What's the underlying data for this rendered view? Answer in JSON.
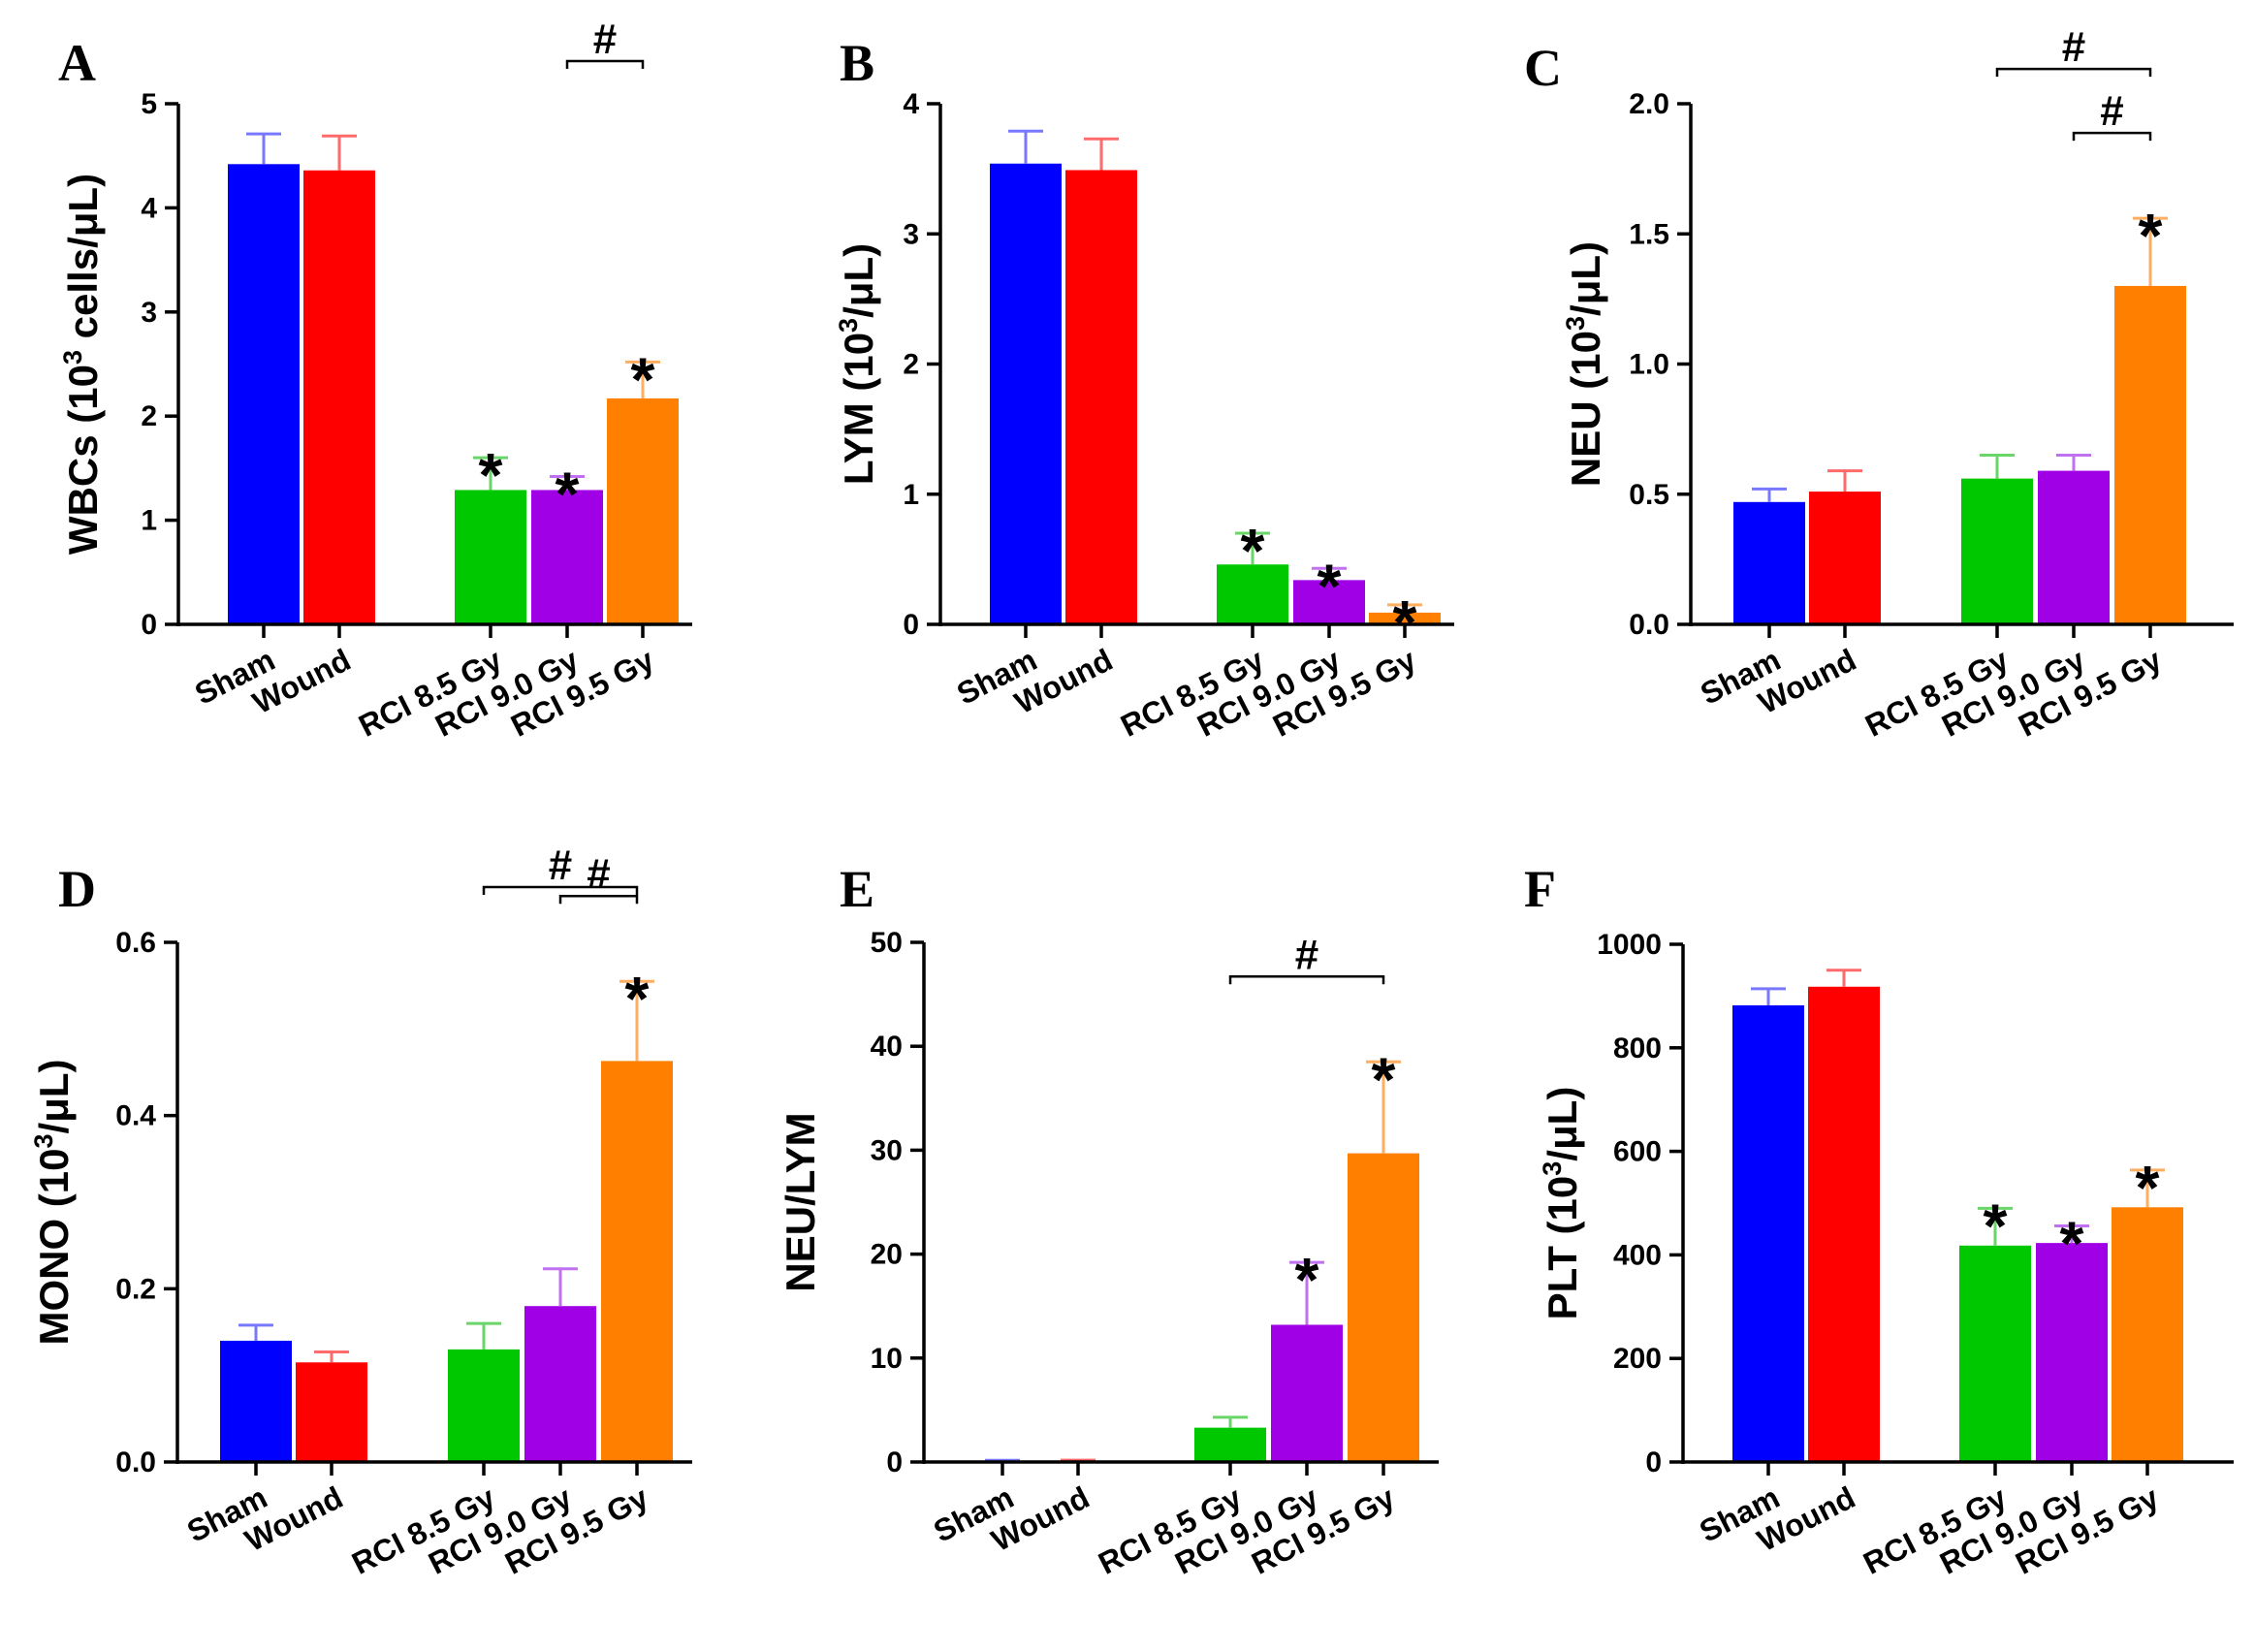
{
  "chart_data": [
    {
      "type": "bar",
      "panel": "A",
      "ylabel_pre": "WBCs (10",
      "ylabel_sup": "3",
      "ylabel_post": " cells/μL)",
      "yticks": [
        "0",
        "1",
        "2",
        "3",
        "4",
        "5"
      ],
      "ylim": [
        0,
        5
      ],
      "categories": [
        "Sham",
        "Wound",
        "RCI 8.5 Gy",
        "RCI 9.0 Gy",
        "RCI 9.5 Gy"
      ],
      "values": [
        4.42,
        4.36,
        1.29,
        1.29,
        2.17
      ],
      "errors": [
        0.29,
        0.33,
        0.31,
        0.13,
        0.35
      ],
      "stars": [
        false,
        false,
        true,
        true,
        true
      ],
      "star_symbol": "*",
      "brackets": [
        {
          "from": 3,
          "to": 4,
          "label": "#"
        }
      ]
    },
    {
      "type": "bar",
      "panel": "B",
      "ylabel_pre": "LYM (10",
      "ylabel_sup": "3",
      "ylabel_post": "/μL)",
      "yticks": [
        "0",
        "1",
        "2",
        "3",
        "4"
      ],
      "ylim": [
        0,
        4
      ],
      "categories": [
        "Sham",
        "Wound",
        "RCI 8.5 Gy",
        "RCI 9.0 Gy",
        "RCI 9.5 Gy"
      ],
      "values": [
        3.54,
        3.49,
        0.46,
        0.34,
        0.09
      ],
      "errors": [
        0.25,
        0.24,
        0.24,
        0.09,
        0.06
      ],
      "stars": [
        false,
        false,
        true,
        true,
        true
      ],
      "star_symbol": "*",
      "brackets": []
    },
    {
      "type": "bar",
      "panel": "C",
      "ylabel_pre": "NEU (10",
      "ylabel_sup": "3",
      "ylabel_post": "/μL)",
      "yticks": [
        "0.0",
        "0.5",
        "1.0",
        "1.5",
        "2.0"
      ],
      "ylim": [
        0,
        2
      ],
      "categories": [
        "Sham",
        "Wound",
        "RCI 8.5 Gy",
        "RCI 9.0 Gy",
        "RCI 9.5 Gy"
      ],
      "values": [
        0.47,
        0.51,
        0.56,
        0.59,
        1.3
      ],
      "errors": [
        0.05,
        0.08,
        0.09,
        0.06,
        0.26
      ],
      "stars": [
        false,
        false,
        false,
        false,
        true
      ],
      "star_symbol": "*",
      "brackets": [
        {
          "from": 2,
          "to": 4,
          "label": "#"
        },
        {
          "from": 3,
          "to": 4,
          "label": "#"
        }
      ]
    },
    {
      "type": "bar",
      "panel": "D",
      "ylabel_pre": "MONO (10",
      "ylabel_sup": "3",
      "ylabel_post": "/μL)",
      "yticks": [
        "0.0",
        "0.2",
        "0.4",
        "0.6"
      ],
      "ylim": [
        0,
        0.6
      ],
      "categories": [
        "Sham",
        "Wound",
        "RCI 8.5 Gy",
        "RCI 9.0 Gy",
        "RCI 9.5 Gy"
      ],
      "values": [
        0.14,
        0.115,
        0.13,
        0.18,
        0.463
      ],
      "errors": [
        0.018,
        0.012,
        0.03,
        0.043,
        0.092
      ],
      "stars": [
        false,
        false,
        false,
        false,
        true
      ],
      "star_symbol": "*",
      "brackets": [
        {
          "from": 2,
          "to": 4,
          "label": "#"
        },
        {
          "from": 3,
          "to": 4,
          "label": "#"
        }
      ]
    },
    {
      "type": "bar",
      "panel": "E",
      "ylabel_pre": "NEU/LYM",
      "ylabel_sup": "",
      "ylabel_post": "",
      "yticks": [
        "0",
        "10",
        "20",
        "30",
        "40",
        "50"
      ],
      "ylim": [
        0,
        50
      ],
      "categories": [
        "Sham",
        "Wound",
        "RCI 8.5 Gy",
        "RCI 9.0 Gy",
        "RCI 9.5 Gy"
      ],
      "values": [
        0.13,
        0.14,
        3.3,
        13.2,
        29.7
      ],
      "errors": [
        0.03,
        0.03,
        1.0,
        6.0,
        8.8
      ],
      "stars": [
        false,
        false,
        false,
        true,
        true
      ],
      "star_symbol": "*",
      "brackets": [
        {
          "from": 2,
          "to": 4,
          "label": "#"
        }
      ]
    },
    {
      "type": "bar",
      "panel": "F",
      "ylabel_pre": "PLT (10",
      "ylabel_sup": "3",
      "ylabel_post": "/μL)",
      "yticks": [
        "0",
        "200",
        "400",
        "600",
        "800",
        "1000"
      ],
      "ylim": [
        0,
        1000
      ],
      "categories": [
        "Sham",
        "Wound",
        "RCI 8.5 Gy",
        "RCI 9.0 Gy",
        "RCI 9.5 Gy"
      ],
      "values": [
        882,
        918,
        418,
        423,
        492
      ],
      "errors": [
        32,
        32,
        72,
        33,
        72
      ],
      "stars": [
        false,
        false,
        true,
        true,
        true
      ],
      "star_symbol": "*",
      "brackets": []
    }
  ],
  "colors": {
    "bars": [
      "#0000ff",
      "#ff0000",
      "#00c800",
      "#a000e6",
      "#ff8000"
    ],
    "error_bars": [
      "#7878ff",
      "#ff6a6a",
      "#6ad66a",
      "#c070f0",
      "#ffae60"
    ],
    "axis": "#000000"
  }
}
